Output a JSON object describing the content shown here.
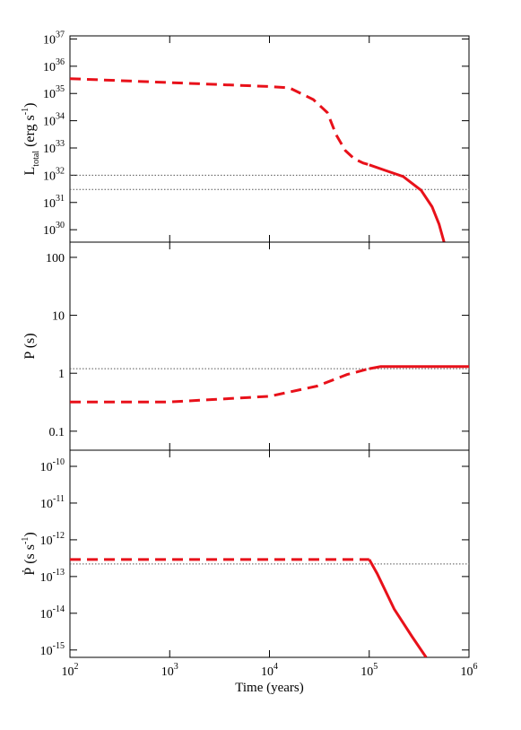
{
  "chart_data": [
    {
      "type": "line",
      "xscale": "log",
      "yscale": "log",
      "xlim": [
        100,
        1000000
      ],
      "ylim": [
        3.5e+29,
        1.3e+37
      ],
      "xticks": [
        100,
        1000,
        10000,
        100000,
        1000000
      ],
      "yticks": [
        {
          "value": 1e+30,
          "label": "10",
          "sup": "30"
        },
        {
          "value": 1e+31,
          "label": "10",
          "sup": "31"
        },
        {
          "value": 1e+32,
          "label": "10",
          "sup": "32"
        },
        {
          "value": 1e+33,
          "label": "10",
          "sup": "33"
        },
        {
          "value": 1e+34,
          "label": "10",
          "sup": "34"
        },
        {
          "value": 1e+35,
          "label": "10",
          "sup": "35"
        },
        {
          "value": 1e+36,
          "label": "10",
          "sup": "36"
        },
        {
          "value": 1e+37,
          "label": "10",
          "sup": "37"
        }
      ],
      "ylabel": [
        {
          "text": "L"
        },
        {
          "text": "total",
          "sub": true
        },
        {
          "text": " (erg s"
        },
        {
          "text": "-1",
          "sup": true
        },
        {
          "text": ")"
        }
      ],
      "reference_lines": [
        1e+32,
        3e+31
      ],
      "series": [
        {
          "color": "#e8111a",
          "dashed": true,
          "x": [
            100,
            1000,
            10000,
            15849,
            27542,
            38019,
            46774,
            57544,
            70795,
            87096,
            100000
          ],
          "values": [
            3.5e+35,
            2.5e+35,
            1.8e+35,
            1.6e+35,
            6e+34,
            2e+34,
            3e+33,
            8e+32,
            4e+32,
            2.8e+32,
            2.4e+32
          ]
        },
        {
          "color": "#e8111a",
          "dashed": false,
          "x": [
            100000,
            144544,
            218776,
            331131,
            426580,
            501187,
            562341
          ],
          "values": [
            2.4e+32,
            1.5e+32,
            9e+31,
            2.8e+31,
            7e+30,
            1.6e+30,
            3.5e+29
          ]
        }
      ]
    },
    {
      "type": "line",
      "xscale": "log",
      "yscale": "log",
      "xlim": [
        100,
        1000000
      ],
      "ylim": [
        0.047,
        183
      ],
      "xticks": [
        100,
        1000,
        10000,
        100000,
        1000000
      ],
      "yticks": [
        0.1,
        1,
        10,
        100
      ],
      "ylabel": [
        {
          "text": "P (s)"
        }
      ],
      "reference_lines": [
        1.2
      ],
      "series": [
        {
          "color": "#e8111a",
          "dashed": true,
          "x": [
            100,
            1000,
            10000,
            30000,
            60000,
            100000
          ],
          "values": [
            0.32,
            0.32,
            0.4,
            0.6,
            0.95,
            1.2
          ]
        },
        {
          "color": "#e8111a",
          "dashed": false,
          "x": [
            100000,
            130000,
            1000000
          ],
          "values": [
            1.2,
            1.3,
            1.3
          ]
        }
      ]
    },
    {
      "type": "line",
      "xscale": "log",
      "yscale": "log",
      "xlim": [
        100,
        1000000
      ],
      "ylim": [
        6.3e-16,
        2.75e-10
      ],
      "xticks": [
        {
          "value": 100,
          "label": "10",
          "sup": "2"
        },
        {
          "value": 1000,
          "label": "10",
          "sup": "3"
        },
        {
          "value": 10000,
          "label": "10",
          "sup": "4"
        },
        {
          "value": 100000,
          "label": "10",
          "sup": "5"
        },
        {
          "value": 1000000,
          "label": "10",
          "sup": "6"
        }
      ],
      "yticks": [
        {
          "value": 1e-15,
          "label": "10",
          "sup": "-15"
        },
        {
          "value": 1e-14,
          "label": "10",
          "sup": "-14"
        },
        {
          "value": 1e-13,
          "label": "10",
          "sup": "-13"
        },
        {
          "value": 1e-12,
          "label": "10",
          "sup": "-12"
        },
        {
          "value": 1e-11,
          "label": "10",
          "sup": "-11"
        },
        {
          "value": 1e-10,
          "label": "10",
          "sup": "-10"
        }
      ],
      "ylabel": [
        {
          "text": "Ṗ (s s"
        },
        {
          "text": "-1",
          "sup": true
        },
        {
          "text": ")"
        }
      ],
      "xlabel": "Time (years)",
      "reference_lines": [
        2.2e-13
      ],
      "series": [
        {
          "color": "#e8111a",
          "dashed": true,
          "x": [
            100,
            100000
          ],
          "values": [
            2.9e-13,
            2.9e-13
          ]
        },
        {
          "color": "#e8111a",
          "dashed": false,
          "x": [
            100000,
            120226,
            177828,
            269153,
            371535
          ],
          "values": [
            2.9e-13,
            1.2e-13,
            1.3e-14,
            2.3e-15,
            6.3e-16
          ]
        }
      ]
    }
  ]
}
